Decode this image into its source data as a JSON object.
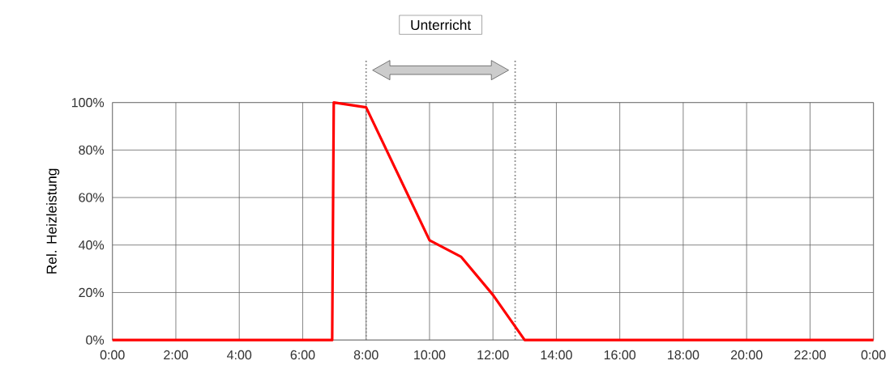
{
  "chart_data": {
    "type": "line",
    "ylabel": "Rel. Heizleistung",
    "x": [
      0,
      6.93,
      6.98,
      8,
      10,
      11,
      12,
      13,
      24
    ],
    "series": [
      {
        "color": "#ff0000",
        "values": [
          0,
          0,
          100,
          98,
          42,
          35,
          19,
          0,
          0
        ]
      }
    ],
    "xlim": [
      0,
      24
    ],
    "xticks": [
      {
        "value": 0,
        "label": "0:00"
      },
      {
        "value": 2,
        "label": "2:00"
      },
      {
        "value": 4,
        "label": "4:00"
      },
      {
        "value": 6,
        "label": "6:00"
      },
      {
        "value": 8,
        "label": "8:00"
      },
      {
        "value": 10,
        "label": "10:00"
      },
      {
        "value": 12,
        "label": "12:00"
      },
      {
        "value": 14,
        "label": "14:00"
      },
      {
        "value": 16,
        "label": "16:00"
      },
      {
        "value": 18,
        "label": "18:00"
      },
      {
        "value": 20,
        "label": "20:00"
      },
      {
        "value": 22,
        "label": "22:00"
      },
      {
        "value": 24,
        "label": "0:00"
      }
    ],
    "ylim": [
      0,
      100
    ],
    "yticks": [
      {
        "value": 0,
        "label": "0%"
      },
      {
        "value": 20,
        "label": "20%"
      },
      {
        "value": 40,
        "label": "40%"
      },
      {
        "value": 60,
        "label": "60%"
      },
      {
        "value": 80,
        "label": "80%"
      },
      {
        "value": 100,
        "label": "100%"
      }
    ],
    "grid": true,
    "marker": "none",
    "line_style": "solid",
    "ref_lines": [
      {
        "axis": "x",
        "value": 8,
        "color": "#808080",
        "line_style": "dotted"
      },
      {
        "axis": "x",
        "value": 12.7,
        "color": "#808080",
        "line_style": "dotted"
      }
    ],
    "annotations": [
      "Unterricht"
    ]
  }
}
